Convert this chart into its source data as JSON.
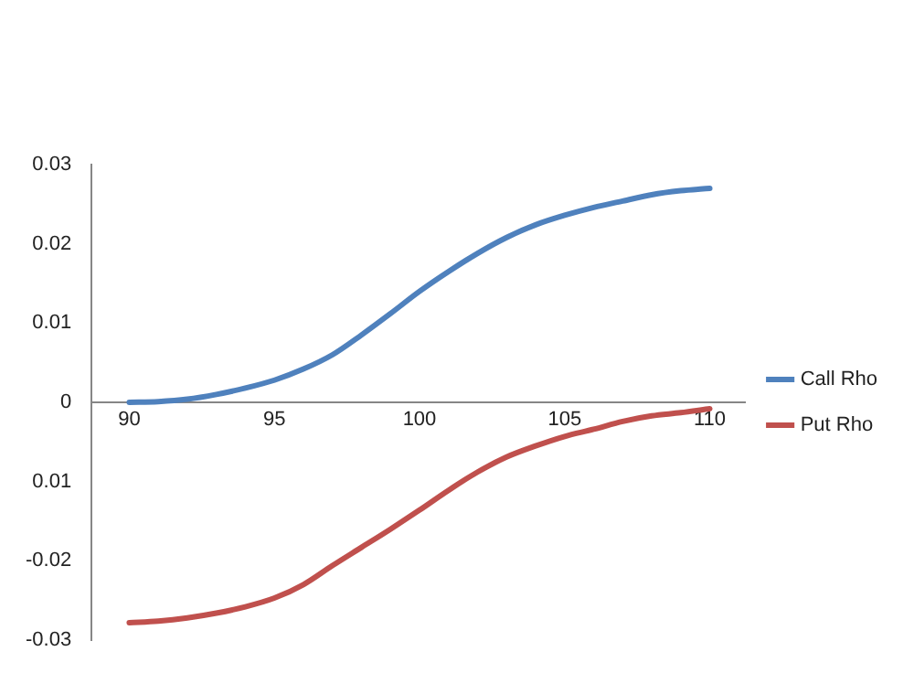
{
  "chart_data": {
    "type": "line",
    "x": [
      90,
      91,
      92,
      93,
      94,
      95,
      96,
      97,
      98,
      99,
      100,
      101,
      102,
      103,
      104,
      105,
      106,
      107,
      108,
      109,
      110
    ],
    "series": [
      {
        "name": "Call Rho",
        "color": "#4f81bd",
        "values": [
          0,
          0.0001,
          0.0004,
          0.001,
          0.0018,
          0.0028,
          0.0042,
          0.006,
          0.0085,
          0.0112,
          0.014,
          0.0165,
          0.0188,
          0.0208,
          0.0224,
          0.0236,
          0.0246,
          0.0254,
          0.0262,
          0.0267,
          0.027
        ]
      },
      {
        "name": "Put Rho",
        "color": "#c0504d",
        "values": [
          -0.0278,
          -0.0276,
          -0.0272,
          -0.0266,
          -0.0258,
          -0.0247,
          -0.023,
          -0.0206,
          -0.0183,
          -0.016,
          -0.0136,
          -0.0111,
          -0.0088,
          -0.0069,
          -0.0055,
          -0.0043,
          -0.0034,
          -0.0024,
          -0.0017,
          -0.0013,
          -0.0008
        ]
      }
    ],
    "xlim": [
      88.7,
      111.2
    ],
    "xticks": [
      90,
      95,
      100,
      105,
      110
    ],
    "ylim": [
      -0.03,
      0.03
    ],
    "yticks": [
      -0.03,
      -0.02,
      {
        "value": -0.01,
        "label": "0.01"
      },
      0,
      0.01,
      0.02,
      0.03
    ],
    "grid": false,
    "legend": "right",
    "marker": "none",
    "line_style": "solid"
  }
}
